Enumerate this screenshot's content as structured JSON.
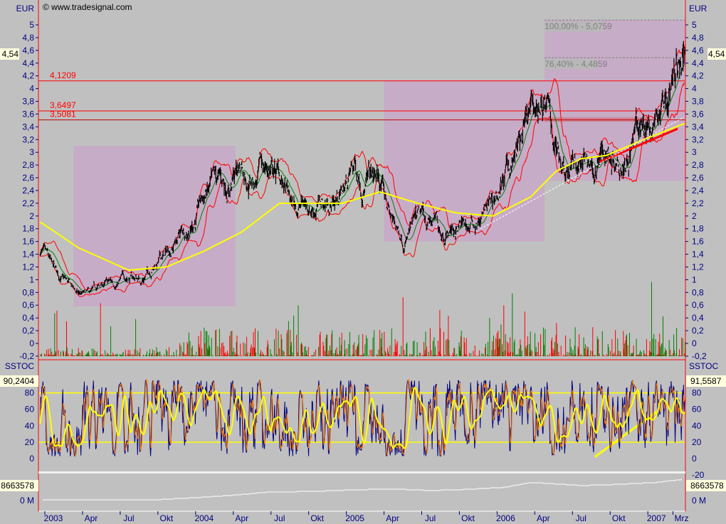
{
  "watermark": "© www.tradesignal.com",
  "price_panel": {
    "unit_left": "EUR",
    "unit_right": "EUR",
    "last_value_left": "4,54",
    "last_value_right": "4,54",
    "ticks": [
      "5",
      "4,8",
      "4,6",
      "4,4",
      "4,2",
      "4",
      "3,8",
      "3,6",
      "3,4",
      "3,2",
      "3",
      "2,8",
      "2,6",
      "2,4",
      "2,2",
      "2",
      "1,8",
      "1,6",
      "1,4",
      "1,2",
      "1",
      "0,8",
      "0,6",
      "0,4",
      "0,2",
      "0",
      "-0,2"
    ],
    "tick_values": [
      5,
      4.8,
      4.6,
      4.4,
      4.2,
      4,
      3.8,
      3.6,
      3.4,
      3.2,
      3,
      2.8,
      2.6,
      2.4,
      2.2,
      2,
      1.8,
      1.6,
      1.4,
      1.2,
      1,
      0.8,
      0.6,
      0.4,
      0.2,
      0,
      -0.2
    ],
    "levels": [
      {
        "label": "4,1209",
        "value": 4.1209,
        "color": "#ff0000"
      },
      {
        "label": "3,6497",
        "value": 3.6497,
        "color": "#ff0000"
      },
      {
        "label": "3,5081",
        "value": 3.5081,
        "color": "#c00000"
      }
    ],
    "fib_labels": [
      {
        "label": "100,00% - 5,0759",
        "value": 5.0759
      },
      {
        "label": "76,40% - 4,4859",
        "value": 4.4859
      }
    ]
  },
  "stoch_panel": {
    "title_left": "SSTOC",
    "title_right": "SSTOC",
    "last_value_left": "90,2404",
    "last_value_right": "91,5587",
    "ticks_left": [
      "80",
      "60",
      "40",
      "20",
      "0"
    ],
    "ticks_right": [
      "80",
      "60",
      "40",
      "20",
      "0",
      "-20"
    ],
    "tick_values_right": [
      80,
      60,
      40,
      20,
      0,
      -20
    ],
    "bands": [
      80,
      20
    ]
  },
  "volume_panel": {
    "last_value_left": "8663578",
    "last_value_right": "8663578",
    "zero_label_left": "0 M",
    "zero_label_right": "0 M"
  },
  "x_axis": {
    "labels": [
      "2003",
      "Apr",
      "Jul",
      "Okt",
      "2004",
      "Apr",
      "Jul",
      "Okt",
      "2005",
      "Apr",
      "Jul",
      "Okt",
      "2006",
      "Apr",
      "Jul",
      "Okt",
      "2007",
      "Mrz"
    ],
    "months": [
      0,
      3,
      6,
      9,
      12,
      15,
      18,
      21,
      24,
      27,
      30,
      33,
      36,
      39,
      42,
      45,
      48,
      50
    ]
  },
  "colors": {
    "price": "#000000",
    "ma200": "#ffff00",
    "band": "#ff0000",
    "mid": "#008000",
    "vol_up": "#008000",
    "vol_down": "#ff0000",
    "stoch_k": "#000080",
    "stoch_d": "#ff8000",
    "stoch_slow": "#ffff00",
    "zone": "#c8a8c8",
    "axis": "#000080"
  },
  "chart_data": {
    "type": "line",
    "x_unit": "month index from Jan 2003",
    "monthly_close": {
      "months": [
        -1,
        0,
        1,
        2,
        3,
        4,
        5,
        6,
        7,
        8,
        9,
        10,
        11,
        12,
        13,
        14,
        15,
        16,
        17,
        18,
        19,
        20,
        21,
        22,
        23,
        24,
        25,
        26,
        27,
        28,
        29,
        30,
        31,
        32,
        33,
        34,
        35,
        36,
        37,
        38,
        39,
        40,
        41,
        42,
        43,
        44,
        45,
        46,
        47,
        48,
        49,
        50.2
      ],
      "values": [
        1.45,
        1.1,
        0.95,
        0.75,
        0.75,
        0.9,
        0.95,
        1.05,
        1.0,
        1.25,
        1.4,
        1.7,
        1.9,
        2.3,
        2.4,
        2.5,
        2.85,
        2.6,
        2.75,
        2.6,
        2.1,
        2.2,
        2.2,
        2.2,
        2.4,
        2.75,
        2.6,
        2.5,
        1.9,
        1.7,
        1.85,
        1.9,
        1.8,
        1.85,
        1.8,
        1.95,
        2.2,
        2.6,
        3.0,
        3.4,
        3.8,
        3.1,
        2.9,
        2.85,
        2.8,
        3.0,
        3.1,
        3.25,
        3.4,
        3.5,
        4.0,
        4.5
      ]
    },
    "ma200": {
      "months": [
        -1,
        2,
        6,
        9,
        12,
        15,
        18,
        20,
        23,
        26,
        29,
        32,
        35,
        38,
        40,
        42,
        44,
        47,
        50.2
      ],
      "values": [
        1.9,
        1.5,
        1.15,
        1.2,
        1.45,
        1.75,
        2.2,
        2.2,
        2.2,
        2.38,
        2.2,
        2.05,
        2.0,
        2.3,
        2.7,
        2.9,
        2.95,
        3.2,
        3.45
      ]
    },
    "zones": [
      {
        "from_month": 1.6,
        "to_month": 14.5,
        "low": 0.58,
        "high": 3.1
      },
      {
        "from_month": 26.3,
        "to_month": 39.1,
        "low": 1.6,
        "high": 4.13
      },
      {
        "from_month": 39.1,
        "to_month": 50.3,
        "low": 2.55,
        "high": 5.0759
      }
    ],
    "trendlines": [
      {
        "panel": "price",
        "color": "#ff0000",
        "from": [
          43.5,
          2.85
        ],
        "to": [
          49.7,
          3.37
        ]
      },
      {
        "panel": "price",
        "color": "#ffffff",
        "from": [
          34,
          1.8
        ],
        "to": [
          50.2,
          3.55
        ]
      },
      {
        "panel": "stoch",
        "color": "#ffff00",
        "from": [
          43.1,
          2
        ],
        "to": [
          48,
          57
        ]
      }
    ],
    "equity": {
      "months": [
        -1,
        8,
        11,
        14,
        17,
        21,
        24,
        27,
        30,
        33,
        36,
        38,
        40,
        42,
        45,
        48,
        50.2
      ],
      "values": [
        0,
        0,
        800000,
        1800000,
        3200000,
        3600000,
        4200000,
        4600000,
        3900000,
        4400000,
        5300000,
        7300000,
        6700000,
        6000000,
        6500000,
        7300000,
        8663578
      ]
    }
  }
}
